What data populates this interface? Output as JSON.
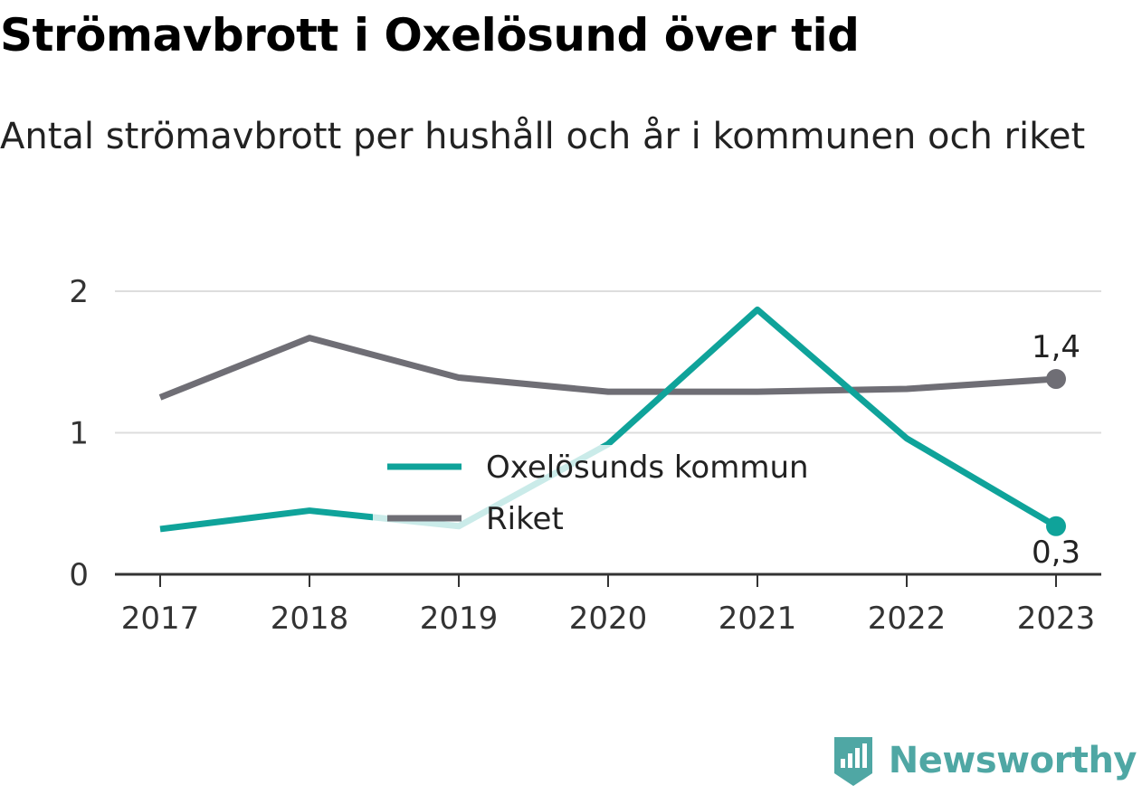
{
  "title": "Strömavbrott i Oxelösund över tid",
  "subtitle": "Antal strömavbrott per hushåll och år i kommunen och riket",
  "brand": {
    "name": "Newsworthy",
    "icon": "newsworthy-logo-icon",
    "color": "#4fa7a4"
  },
  "chart_data": {
    "type": "line",
    "x": [
      "2017",
      "2018",
      "2019",
      "2020",
      "2021",
      "2022",
      "2023"
    ],
    "ylim": [
      0,
      2
    ],
    "yticks": [
      "0",
      "1",
      "2"
    ],
    "grid": true,
    "legend_position": "center",
    "series": [
      {
        "name": "Oxelösunds kommun",
        "color": "#0fa39a",
        "values": [
          0.32,
          0.45,
          0.34,
          0.92,
          1.87,
          0.96,
          0.34
        ],
        "end_label": "0,3"
      },
      {
        "name": "Riket",
        "color": "#6f6e75",
        "values": [
          1.25,
          1.67,
          1.39,
          1.29,
          1.29,
          1.31,
          1.38
        ],
        "end_label": "1,4"
      }
    ]
  }
}
